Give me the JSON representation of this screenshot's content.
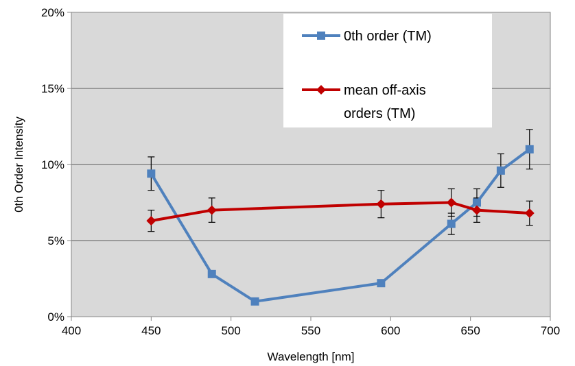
{
  "chart_data": {
    "type": "line",
    "xlabel": "Wavelength [nm]",
    "ylabel": "0th Order Intensity",
    "xlim": [
      400,
      700
    ],
    "ylim": [
      0,
      0.2
    ],
    "x_ticks": [
      {
        "value": 400,
        "label": "400"
      },
      {
        "value": 450,
        "label": "450"
      },
      {
        "value": 500,
        "label": "500"
      },
      {
        "value": 550,
        "label": "550"
      },
      {
        "value": 600,
        "label": "600"
      },
      {
        "value": 650,
        "label": "650"
      },
      {
        "value": 700,
        "label": "700"
      }
    ],
    "y_ticks": [
      {
        "value": 0,
        "label": "0%"
      },
      {
        "value": 0.05,
        "label": "5%"
      },
      {
        "value": 0.1,
        "label": "10%"
      },
      {
        "value": 0.15,
        "label": "15%"
      },
      {
        "value": 0.2,
        "label": "20%"
      }
    ],
    "grid": "horizontal",
    "plot_background": "#d9d9d9",
    "legend_position": "top-right",
    "series": [
      {
        "name": "0th order (TM)",
        "legend_lines": [
          "0th order (TM)"
        ],
        "color": "#4f81bd",
        "marker": "square",
        "x": [
          450,
          488,
          515,
          594,
          638,
          654,
          669,
          687
        ],
        "y": [
          0.094,
          0.028,
          0.01,
          0.022,
          0.061,
          0.075,
          0.096,
          0.11
        ],
        "error": [
          0.011,
          0.002,
          0,
          0,
          0.007,
          0.009,
          0.011,
          0.013
        ]
      },
      {
        "name": "mean off-axis orders (TM)",
        "legend_lines": [
          "mean off-axis",
          "orders (TM)"
        ],
        "color": "#c00000",
        "marker": "diamond",
        "x": [
          450,
          488,
          594,
          638,
          654,
          687
        ],
        "y": [
          0.063,
          0.07,
          0.074,
          0.075,
          0.07,
          0.068
        ],
        "error": [
          0.007,
          0.008,
          0.009,
          0.009,
          0.008,
          0.008
        ]
      }
    ]
  }
}
